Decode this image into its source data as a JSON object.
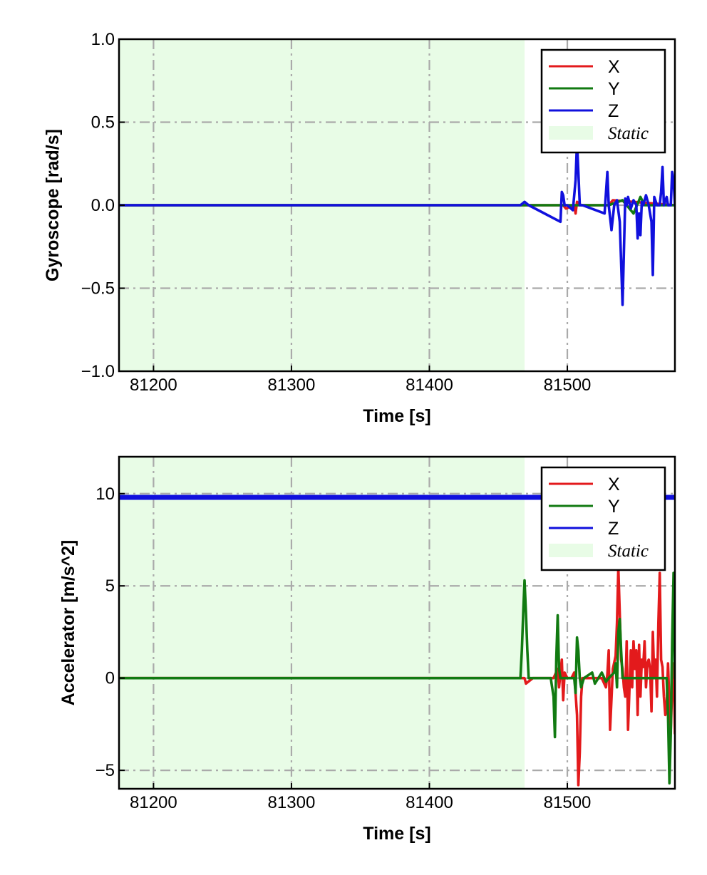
{
  "colors": {
    "x": "#e31a1c",
    "y": "#117a11",
    "z": "#1010dd",
    "static_fill": "#e8fce6",
    "grid": "#aaaaaa"
  },
  "chart_data": [
    {
      "type": "line",
      "xlabel": "Time [s]",
      "ylabel": "Gyroscope [rad/s]",
      "xlim": [
        81175,
        81578
      ],
      "ylim": [
        -1.0,
        1.0
      ],
      "xticks": [
        81200,
        81300,
        81400,
        81500
      ],
      "xtick_labels": [
        "81200",
        "81300",
        "81400",
        "81500"
      ],
      "yticks": [
        1.0,
        0.5,
        0.0,
        -0.5,
        -1.0
      ],
      "ytick_labels": [
        "1.0",
        "0.5",
        "0.0",
        "−0.5",
        "−1.0"
      ],
      "grid": true,
      "legend_position": "top-right",
      "legend": [
        "X",
        "Y",
        "Z",
        "Static"
      ],
      "static_interval": [
        81175,
        81469
      ],
      "series": [
        {
          "name": "X",
          "color": "#e31a1c",
          "x": [
            81175,
            81469,
            81497,
            81499,
            81505,
            81506,
            81507,
            81510,
            81530,
            81533,
            81578
          ],
          "y": [
            0,
            0,
            0,
            -0.02,
            0,
            -0.05,
            0.02,
            0,
            0,
            0.03,
            0
          ]
        },
        {
          "name": "Y",
          "color": "#117a11",
          "x": [
            81175,
            81469,
            81530,
            81540,
            81548,
            81553,
            81556,
            81578
          ],
          "y": [
            0,
            0,
            0,
            0.03,
            -0.05,
            0.05,
            0,
            0
          ]
        },
        {
          "name": "Z",
          "color": "#1010dd",
          "x": [
            81175,
            81466,
            81469,
            81472,
            81495,
            81496,
            81497,
            81498,
            81500,
            81504,
            81506,
            81507,
            81508,
            81509,
            81511,
            81527,
            81529,
            81530,
            81532,
            81534,
            81536,
            81538,
            81540,
            81542,
            81543,
            81544,
            81546,
            81548,
            81550,
            81551,
            81552,
            81553,
            81554,
            81555,
            81557,
            81559,
            81561,
            81562,
            81563,
            81565,
            81567,
            81568,
            81569,
            81570,
            81572,
            81573,
            81575,
            81576,
            81577,
            81578
          ],
          "y": [
            0,
            0,
            0.02,
            0,
            -0.1,
            0.08,
            0.06,
            0,
            0,
            -0.03,
            0.15,
            0.38,
            0.2,
            0,
            0,
            -0.05,
            0.2,
            0,
            -0.15,
            0,
            0.03,
            -0.1,
            -0.6,
            0.04,
            0,
            0.05,
            -0.02,
            0.03,
            0,
            -0.2,
            -0.05,
            -0.18,
            0.02,
            0,
            0.06,
            0,
            -0.1,
            -0.42,
            0.05,
            0,
            0,
            0.08,
            0.23,
            0,
            0.05,
            0,
            0,
            0.2,
            0.15,
            0
          ]
        }
      ]
    },
    {
      "type": "line",
      "xlabel": "Time [s]",
      "ylabel": "Accelerator [m/s^2]",
      "xlim": [
        81175,
        81578
      ],
      "ylim": [
        -6,
        12
      ],
      "xticks": [
        81200,
        81300,
        81400,
        81500
      ],
      "xtick_labels": [
        "81200",
        "81300",
        "81400",
        "81500"
      ],
      "yticks": [
        10,
        5,
        0,
        -5
      ],
      "ytick_labels": [
        "10",
        "5",
        "0",
        "−5"
      ],
      "grid": true,
      "legend_position": "top-right",
      "legend": [
        "X",
        "Y",
        "Z",
        "Static"
      ],
      "static_interval": [
        81175,
        81469
      ],
      "series": [
        {
          "name": "X",
          "color": "#e31a1c",
          "x": [
            81175,
            81469,
            81470,
            81475,
            81490,
            81493,
            81494,
            81496,
            81497,
            81498,
            81500,
            81503,
            81505,
            81507,
            81508,
            81509,
            81510,
            81511,
            81513,
            81516,
            81520,
            81525,
            81528,
            81529,
            81530,
            81531,
            81533,
            81535,
            81536,
            81537,
            81538,
            81539,
            81540,
            81541,
            81542,
            81543,
            81544,
            81546,
            81547,
            81548,
            81549,
            81550,
            81551,
            81552,
            81553,
            81554,
            81555,
            81556,
            81557,
            81558,
            81559,
            81560,
            81561,
            81562,
            81563,
            81564,
            81565,
            81566,
            81567,
            81568,
            81569,
            81570,
            81571,
            81572,
            81573,
            81574,
            81575,
            81576,
            81577,
            81578
          ],
          "y": [
            0,
            0,
            -0.3,
            0,
            0,
            0.5,
            -0.5,
            1,
            -1.2,
            0.3,
            0,
            0,
            0.3,
            -2,
            -5.8,
            -4,
            -1,
            0,
            0,
            0,
            0,
            0,
            -0.5,
            0.2,
            1.5,
            -2.8,
            0.5,
            1.2,
            3,
            6,
            3.5,
            1,
            0.5,
            -0.5,
            -1,
            2,
            -2.8,
            1.5,
            -0.5,
            2,
            0.5,
            1.5,
            -2,
            1.8,
            -1,
            1,
            0.6,
            2,
            -0.5,
            0.8,
            1,
            0.5,
            -1.8,
            2.5,
            0,
            1,
            -1,
            3,
            5.7,
            1,
            0.6,
            -1,
            -2,
            -1.5,
            0.8,
            -1.5,
            -2.8,
            -0.5,
            0.8,
            -3
          ]
        },
        {
          "name": "Y",
          "color": "#117a11",
          "x": [
            81175,
            81466,
            81467,
            81468,
            81469,
            81470,
            81471,
            81472,
            81473,
            81480,
            81488,
            81489,
            81490,
            81491,
            81492,
            81493,
            81494,
            81495,
            81500,
            81505,
            81506,
            81507,
            81508,
            81509,
            81510,
            81512,
            81518,
            81520,
            81525,
            81528,
            81530,
            81534,
            81535,
            81536,
            81537,
            81538,
            81539,
            81540,
            81545,
            81550,
            81560,
            81572,
            81573,
            81574,
            81575,
            81576,
            81577,
            81578
          ],
          "y": [
            0,
            0,
            1.5,
            3.5,
            5.3,
            3.5,
            1.5,
            0,
            0,
            0,
            0,
            -0.5,
            -1,
            -3.2,
            1,
            3.4,
            0.5,
            0,
            0,
            0,
            -0.8,
            2.2,
            1.5,
            0,
            -0.5,
            0,
            0.3,
            -0.3,
            0.3,
            -0.2,
            0,
            0.3,
            0.8,
            -0.5,
            2.5,
            3.2,
            1.5,
            0,
            0,
            0,
            0,
            0,
            -2,
            -5.7,
            -3,
            2,
            5.7,
            0
          ]
        },
        {
          "name": "Z",
          "color": "#1010dd",
          "x": [
            81175,
            81578
          ],
          "y": [
            9.8,
            9.8
          ]
        }
      ]
    }
  ]
}
